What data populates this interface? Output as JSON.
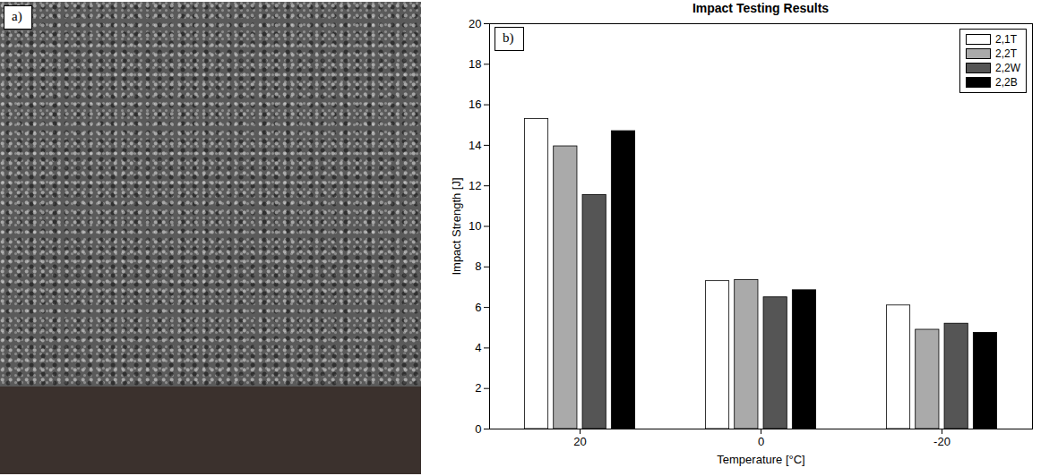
{
  "chart_data": {
    "type": "bar",
    "title": "Impact Testing Results",
    "x_label": "Temperature [°C]",
    "y_label": "Impact Strength [J]",
    "categories": [
      20,
      0,
      -20
    ],
    "series": [
      {
        "name": "2,1T",
        "color": "#ffffff",
        "values": [
          15.3,
          7.3,
          6.1
        ]
      },
      {
        "name": "2,2T",
        "color": "#aaaaaa",
        "values": [
          13.95,
          7.35,
          4.9
        ]
      },
      {
        "name": "2,2W",
        "color": "#555555",
        "values": [
          11.55,
          6.5,
          5.2
        ]
      },
      {
        "name": "2,2B",
        "color": "#000000",
        "values": [
          14.7,
          6.85,
          4.75
        ]
      }
    ],
    "ylim": [
      0,
      20
    ],
    "yticks": [
      0,
      2,
      4,
      6,
      8,
      10,
      12,
      14,
      16,
      18,
      20
    ],
    "grid": false,
    "legend": "top-right",
    "annotations": [
      "b)"
    ]
  },
  "photo": {
    "label": "a)"
  }
}
